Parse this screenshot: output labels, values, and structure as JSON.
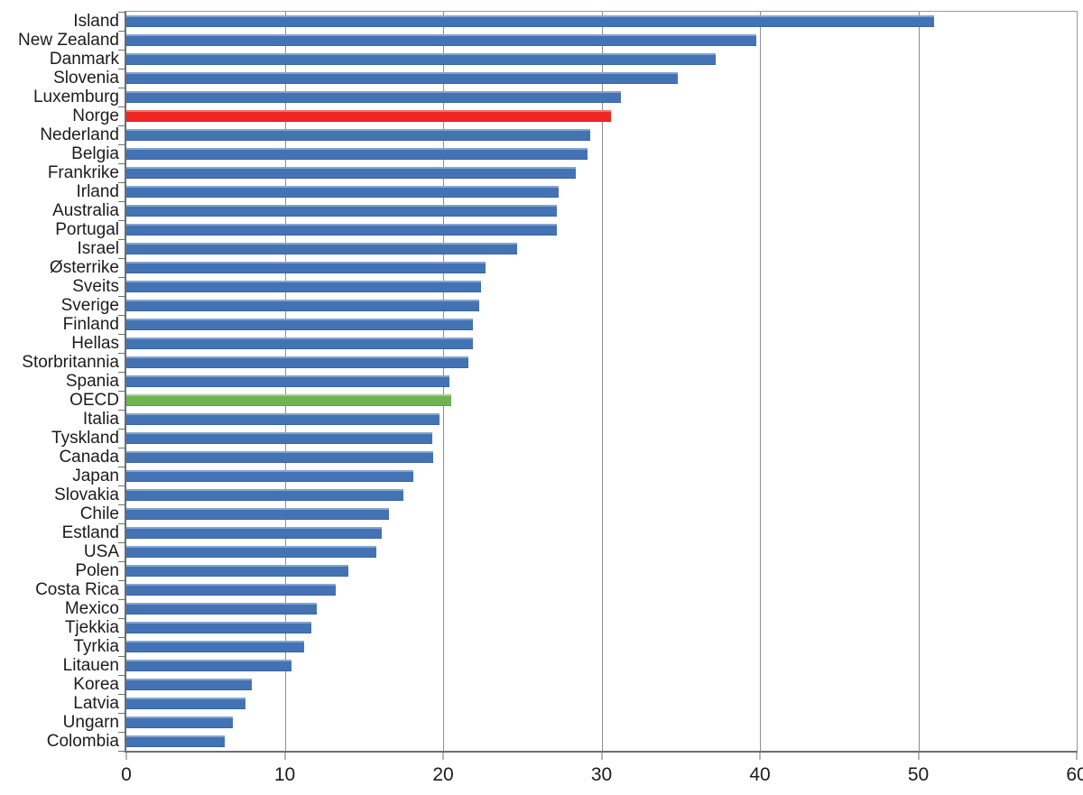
{
  "figure": {
    "background": "#ffffff",
    "text_color": "#1c1c1c",
    "gridline_color": "#8f8f8f",
    "axis_color": "#6e6e6e"
  },
  "chart_data": {
    "type": "bar",
    "orientation": "horizontal",
    "title": "",
    "xlabel": "",
    "ylabel": "",
    "xlim": [
      0,
      60
    ],
    "x_ticks": [
      0,
      10,
      20,
      30,
      40,
      50,
      60
    ],
    "grid": "vertical gridlines at x ticks 10-50",
    "legend": "none",
    "categories": [
      "Island",
      "New Zealand",
      "Danmark",
      "Slovenia",
      "Luxemburg",
      "Norge",
      "Nederland",
      "Belgia",
      "Frankrike",
      "Irland",
      "Australia",
      "Portugal",
      "Israel",
      "Østerrike",
      "Sveits",
      "Sverige",
      "Finland",
      "Hellas",
      "Storbritannia",
      "Spania",
      "OECD",
      "Italia",
      "Tyskland",
      "Canada",
      "Japan",
      "Slovakia",
      "Chile",
      "Estland",
      "USA",
      "Polen",
      "Costa Rica",
      "Mexico",
      "Tjekkia",
      "Tyrkia",
      "Litauen",
      "Korea",
      "Latvia",
      "Ungarn",
      "Colombia"
    ],
    "values": [
      51.0,
      39.8,
      37.2,
      34.8,
      31.2,
      30.6,
      29.3,
      29.1,
      28.4,
      27.3,
      27.2,
      27.2,
      24.7,
      22.7,
      22.4,
      22.3,
      21.9,
      21.9,
      21.6,
      20.4,
      20.5,
      19.8,
      19.3,
      19.4,
      18.1,
      17.5,
      16.6,
      16.1,
      15.8,
      14.0,
      13.2,
      12.0,
      11.7,
      11.2,
      10.4,
      7.9,
      7.5,
      6.7,
      6.2
    ],
    "bar_colors": [
      "blue",
      "blue",
      "blue",
      "blue",
      "blue",
      "red",
      "blue",
      "blue",
      "blue",
      "blue",
      "blue",
      "blue",
      "blue",
      "blue",
      "blue",
      "blue",
      "blue",
      "blue",
      "blue",
      "blue",
      "green",
      "blue",
      "blue",
      "blue",
      "blue",
      "blue",
      "blue",
      "blue",
      "blue",
      "blue",
      "blue",
      "blue",
      "blue",
      "blue",
      "blue",
      "blue",
      "blue",
      "blue",
      "blue"
    ],
    "palette": {
      "blue": "#4473b5",
      "red": "#ee2724",
      "green": "#6fb450"
    },
    "highlights": [
      {
        "category": "Norge",
        "color": "red"
      },
      {
        "category": "OECD",
        "color": "green"
      }
    ]
  }
}
